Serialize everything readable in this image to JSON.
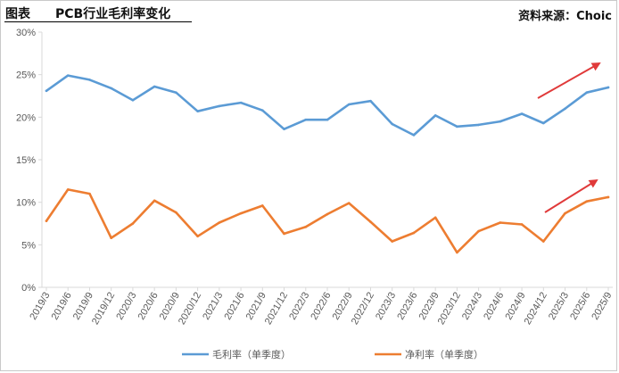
{
  "header": {
    "figure_label": "图表",
    "title": "PCB行业毛利率变化",
    "source": "资料来源：Choic"
  },
  "colors": {
    "gross": "#5b9bd5",
    "net": "#ed7d31",
    "arrow": "#e03a3a",
    "axis": "#d9d9d9",
    "text": "#595959"
  },
  "chart_data": {
    "type": "line",
    "title": "PCB行业毛利率变化",
    "xlabel": "",
    "ylabel": "",
    "ylim": [
      0,
      30
    ],
    "yticks": [
      "0%",
      "5%",
      "10%",
      "15%",
      "20%",
      "25%",
      "30%"
    ],
    "grid": false,
    "legend_position": "bottom",
    "x": [
      "2019/3",
      "2019/6",
      "2019/9",
      "2019/12",
      "2020/3",
      "2020/6",
      "2020/9",
      "2020/12",
      "2021/3",
      "2021/6",
      "2021/9",
      "2021/12",
      "2022/3",
      "2022/6",
      "2022/9",
      "2022/12",
      "2023/3",
      "2023/6",
      "2023/9",
      "2023/12",
      "2024/3",
      "2024/6",
      "2024/9",
      "2024/12",
      "2025/3",
      "2025/6",
      "2025/9"
    ],
    "series": [
      {
        "name": "毛利率（单季度）",
        "color": "#5b9bd5",
        "values": [
          23.1,
          24.9,
          24.4,
          23.4,
          22.0,
          23.6,
          22.9,
          20.7,
          21.3,
          21.7,
          20.8,
          18.6,
          19.7,
          19.7,
          21.5,
          21.9,
          19.2,
          17.9,
          20.2,
          18.9,
          19.1,
          19.5,
          20.4,
          19.3,
          21.0,
          22.9,
          23.5
        ]
      },
      {
        "name": "净利率（单季度）",
        "color": "#ed7d31",
        "values": [
          7.8,
          11.5,
          11.0,
          5.8,
          7.5,
          10.2,
          8.8,
          6.0,
          7.6,
          8.7,
          9.6,
          6.3,
          7.1,
          8.6,
          9.9,
          7.7,
          5.4,
          6.4,
          8.2,
          4.1,
          6.6,
          7.6,
          7.4,
          5.4,
          8.7,
          10.1,
          10.6
        ]
      }
    ],
    "annotations": [
      {
        "type": "arrow",
        "series": "毛利率（单季度）",
        "from": "2024/12",
        "to": "2025/9",
        "color": "#e03a3a"
      },
      {
        "type": "arrow",
        "series": "净利率（单季度）",
        "from": "2024/12",
        "to": "2025/9",
        "color": "#e03a3a"
      }
    ]
  }
}
